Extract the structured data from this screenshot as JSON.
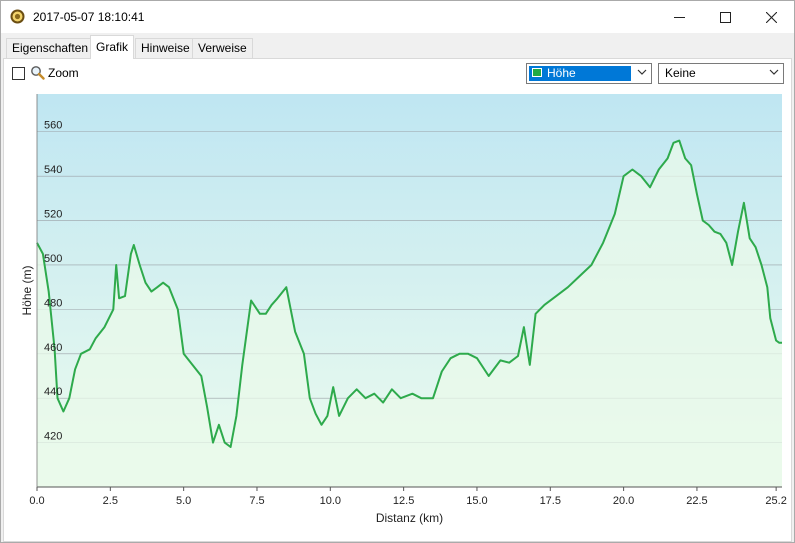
{
  "window": {
    "title": "2017-05-07 18:10:41"
  },
  "tabs": [
    {
      "label": "Eigenschaften",
      "active": false
    },
    {
      "label": "Grafik",
      "active": true
    },
    {
      "label": "Hinweise",
      "active": false
    },
    {
      "label": "Verweise",
      "active": false
    }
  ],
  "toolbar": {
    "zoom_label": "Zoom",
    "zoom_checked": false,
    "series_select": {
      "value": "Höhe",
      "color": "#22aa44"
    },
    "second_select": {
      "value": "Keine"
    }
  },
  "colors": {
    "line": "#2eaa4c",
    "fill_top": "#bfe6f2",
    "fill_bottom": "#edfcee"
  },
  "chart_data": {
    "type": "area",
    "xlabel": "Distanz  (km)",
    "ylabel": "Höhe (m)",
    "xlim": [
      0,
      25.4
    ],
    "ylim": [
      400,
      577
    ],
    "x_ticks": [
      "0.0",
      "2.5",
      "5.0",
      "7.5",
      "10.0",
      "12.5",
      "15.0",
      "17.5",
      "20.0",
      "22.5",
      "25.2"
    ],
    "y_ticks": [
      "420",
      "440",
      "460",
      "480",
      "500",
      "520",
      "540",
      "560"
    ],
    "grid": "horizontal",
    "series": [
      {
        "x": [
          0,
          0.2,
          0.4,
          0.6,
          0.7,
          0.9,
          1.1,
          1.3,
          1.5,
          1.8,
          2.0,
          2.3,
          2.6,
          2.7,
          2.8,
          3.0,
          3.2,
          3.3,
          3.5,
          3.7,
          3.9,
          4.1,
          4.3,
          4.5,
          4.8,
          5.0,
          5.3,
          5.6,
          5.8,
          6.0,
          6.2,
          6.4,
          6.6,
          6.8,
          7.0,
          7.3,
          7.6,
          7.8,
          8.0,
          8.2,
          8.5,
          8.8,
          9.1,
          9.3,
          9.5,
          9.7,
          9.9,
          10.1,
          10.3,
          10.6,
          10.9,
          11.2,
          11.5,
          11.8,
          12.1,
          12.4,
          12.8,
          13.1,
          13.5,
          13.8,
          14.1,
          14.4,
          14.7,
          15.0,
          15.4,
          15.8,
          16.1,
          16.4,
          16.6,
          16.8,
          17.0,
          17.3,
          17.7,
          18.1,
          18.5,
          18.9,
          19.3,
          19.7,
          20.0,
          20.3,
          20.6,
          20.9,
          21.2,
          21.5,
          21.7,
          21.9,
          22.1,
          22.3,
          22.5,
          22.7,
          22.9,
          23.1,
          23.3,
          23.5,
          23.7,
          23.9,
          24.1,
          24.3,
          24.5,
          24.7,
          24.9,
          25.0,
          25.2,
          25.3,
          25.4
        ],
        "y": [
          510,
          505,
          488,
          462,
          440,
          434,
          440,
          453,
          460,
          462,
          467,
          472,
          480,
          500,
          485,
          486,
          505,
          509,
          500,
          492,
          488,
          490,
          492,
          490,
          480,
          460,
          455,
          450,
          436,
          420,
          428,
          420,
          418,
          432,
          455,
          484,
          478,
          478,
          482,
          485,
          490,
          470,
          460,
          440,
          433,
          428,
          432,
          445,
          432,
          440,
          444,
          440,
          442,
          438,
          444,
          440,
          442,
          440,
          440,
          452,
          458,
          460,
          460,
          458,
          450,
          457,
          456,
          459,
          472,
          455,
          478,
          482,
          486,
          490,
          495,
          500,
          510,
          523,
          540,
          543,
          540,
          535,
          543,
          548,
          555,
          556,
          548,
          545,
          532,
          520,
          518,
          515,
          514,
          510,
          500,
          515,
          528,
          512,
          508,
          500,
          490,
          476,
          466,
          465,
          465
        ]
      }
    ]
  }
}
